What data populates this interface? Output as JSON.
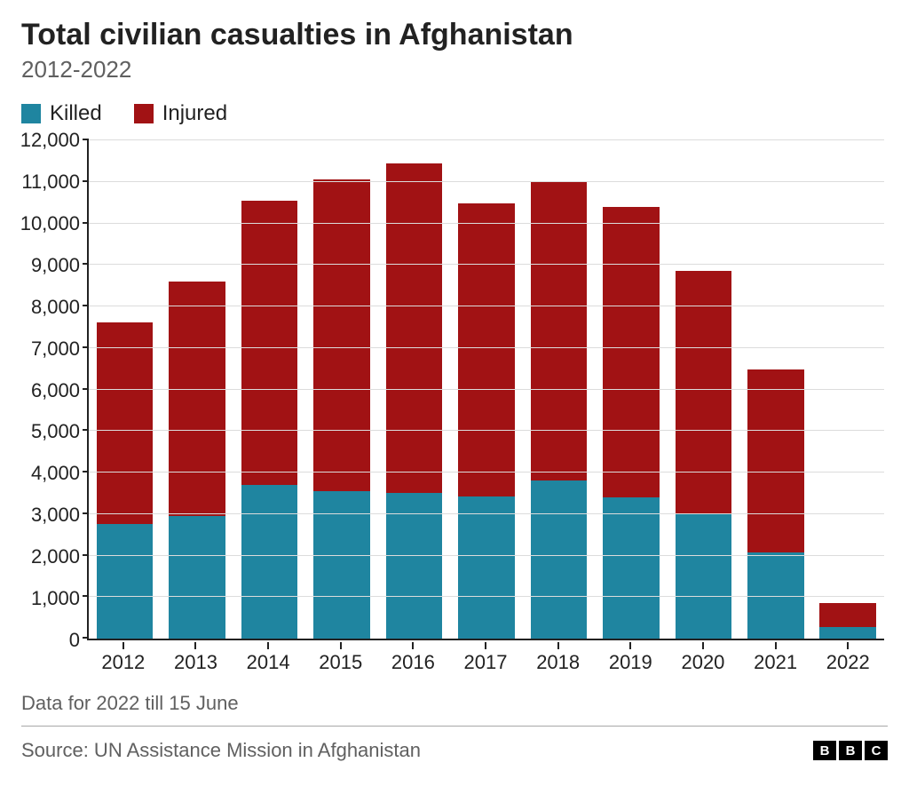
{
  "title": "Total civilian casualties in Afghanistan",
  "subtitle": "2012-2022",
  "legend": {
    "killed": {
      "label": "Killed",
      "color": "#1f85a0"
    },
    "injured": {
      "label": "Injured",
      "color": "#a11214"
    }
  },
  "chart": {
    "type": "stacked-bar",
    "background_color": "#ffffff",
    "grid_color": "#dcdcdc",
    "axis_color": "#222222",
    "label_fontsize": 22,
    "ylim": [
      0,
      12000
    ],
    "ytick_step": 1000,
    "yticks": [
      {
        "v": 0,
        "label": "0"
      },
      {
        "v": 1000,
        "label": "1,000"
      },
      {
        "v": 2000,
        "label": "2,000"
      },
      {
        "v": 3000,
        "label": "3,000"
      },
      {
        "v": 4000,
        "label": "4,000"
      },
      {
        "v": 5000,
        "label": "5,000"
      },
      {
        "v": 6000,
        "label": "6,000"
      },
      {
        "v": 7000,
        "label": "7,000"
      },
      {
        "v": 8000,
        "label": "8,000"
      },
      {
        "v": 9000,
        "label": "9,000"
      },
      {
        "v": 10000,
        "label": "10,000"
      },
      {
        "v": 11000,
        "label": "11,000"
      },
      {
        "v": 12000,
        "label": "12,000"
      }
    ],
    "categories": [
      "2012",
      "2013",
      "2014",
      "2015",
      "2016",
      "2017",
      "2018",
      "2019",
      "2020",
      "2021",
      "2022"
    ],
    "series": {
      "killed": [
        2750,
        2950,
        3700,
        3550,
        3500,
        3430,
        3800,
        3400,
        3020,
        2080,
        280
      ],
      "injured": [
        4870,
        5650,
        6850,
        7500,
        7950,
        7050,
        7200,
        7000,
        5830,
        4400,
        570
      ]
    },
    "bar_width": 0.78,
    "colors": {
      "killed": "#1f85a0",
      "injured": "#a11214"
    }
  },
  "note": "Data for 2022 till 15 June",
  "source": "Source: UN Assistance Mission in Afghanistan",
  "logo": {
    "letters": [
      "B",
      "B",
      "C"
    ],
    "bg": "#000000",
    "fg": "#ffffff"
  }
}
